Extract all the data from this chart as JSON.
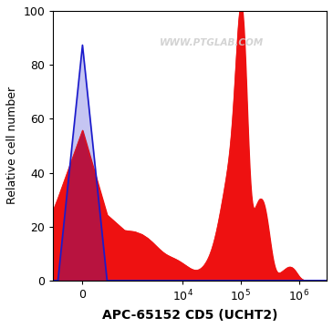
{
  "title": "APC-65152 CD5 (UCHT2)",
  "ylabel": "Relative cell number",
  "watermark": "WWW.PTGLAB.COM",
  "ylim": [
    0,
    100
  ],
  "yticks": [
    0,
    20,
    40,
    60,
    80,
    100
  ],
  "blue_color": "#1a1acc",
  "red_color": "#ee1111",
  "background_color": "#ffffff",
  "linthresh": 300,
  "linscale": 0.18
}
